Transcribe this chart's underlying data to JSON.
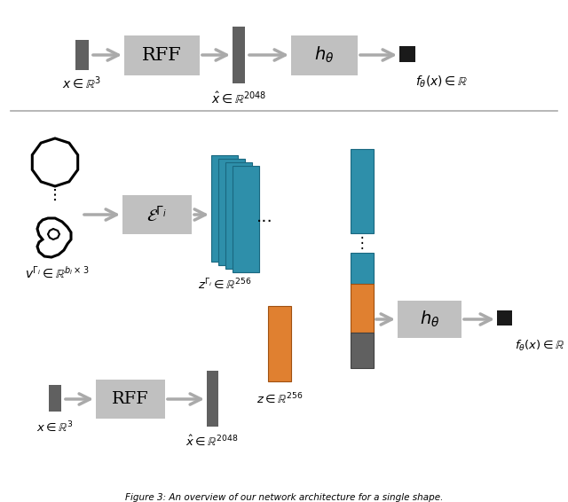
{
  "bg_color": "#ffffff",
  "box_color": "#c0c0c0",
  "dark_gray": "#606060",
  "teal": "#2e8faa",
  "orange": "#e08030",
  "black": "#111111",
  "arrow_color": "#aaaaaa",
  "figure_caption": "Figure 3: An overview of our network architecture for a single shape."
}
